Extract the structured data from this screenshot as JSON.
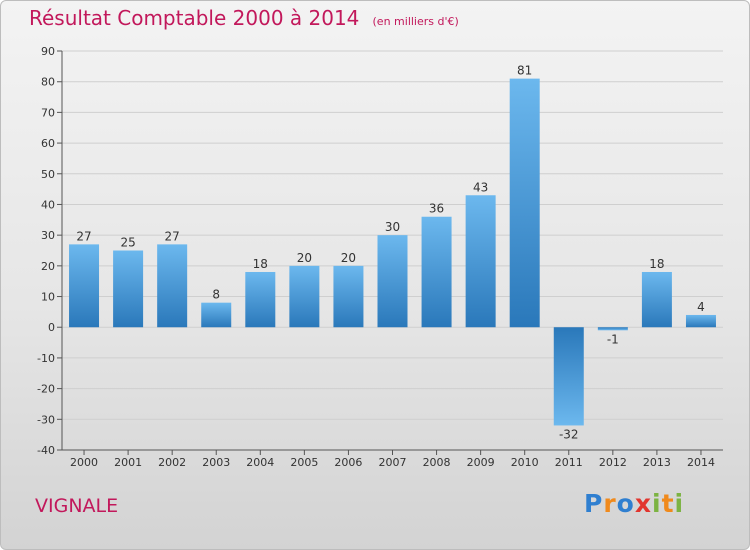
{
  "header": {
    "title": "Résultat Comptable 2000 à 2014",
    "subtitle": "(en milliers d'€)"
  },
  "footer": {
    "commune": "VIGNALE",
    "logo_text": "Proxiti"
  },
  "colors": {
    "title": "#c2185b",
    "bar_light": "#5dade8",
    "bar_dark": "#2b7bbd",
    "grid": "#d0d0d0"
  },
  "chart_data": {
    "type": "bar",
    "categories": [
      "2000",
      "2001",
      "2002",
      "2003",
      "2004",
      "2005",
      "2006",
      "2007",
      "2008",
      "2009",
      "2010",
      "2011",
      "2012",
      "2013",
      "2014"
    ],
    "values": [
      27,
      25,
      27,
      8,
      18,
      20,
      20,
      30,
      36,
      43,
      81,
      -32,
      -1,
      18,
      4
    ],
    "ylim": [
      -40,
      90
    ],
    "yticks": [
      90,
      80,
      70,
      60,
      50,
      40,
      30,
      20,
      10,
      0,
      -10,
      -20,
      -30,
      -40
    ],
    "grid": true
  }
}
